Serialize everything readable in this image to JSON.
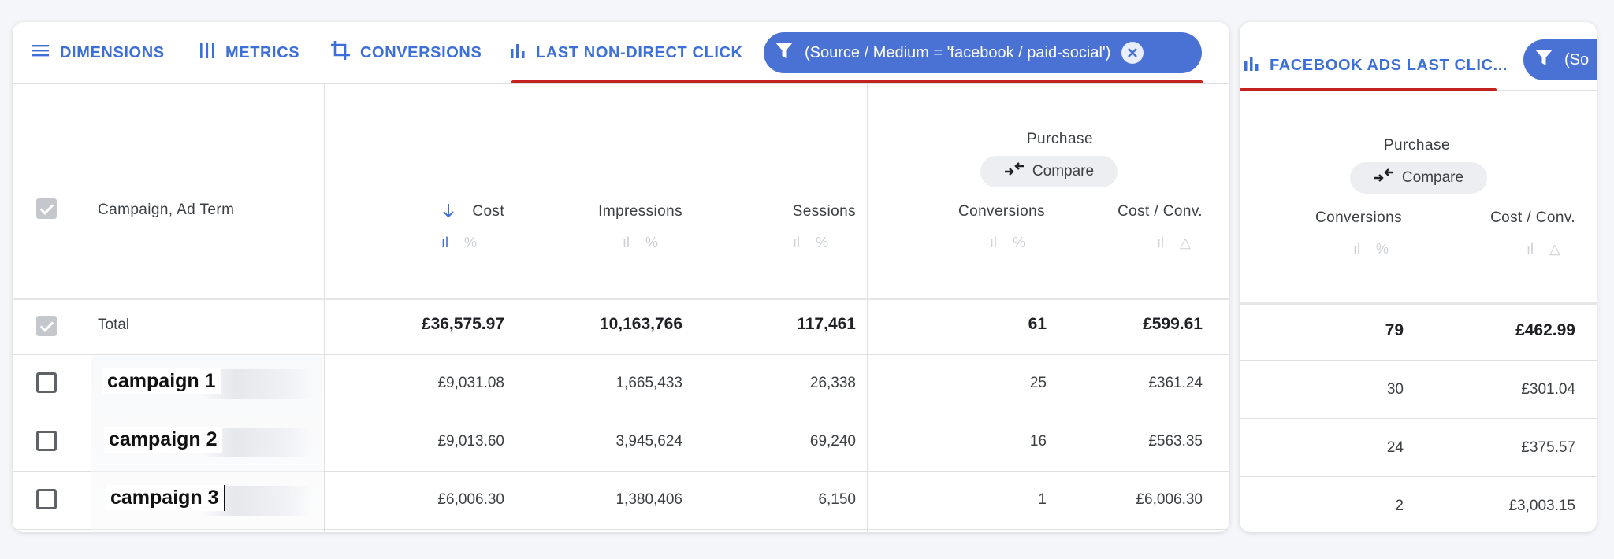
{
  "left_panel": {
    "toolbar": {
      "dimensions": "DIMENSIONS",
      "metrics": "METRICS",
      "conversions": "CONVERSIONS",
      "attribution": "LAST NON-DIRECT CLICK",
      "filter": "(Source / Medium = 'facebook / paid-social')"
    },
    "group_label": "Purchase",
    "compare_label": "Compare",
    "columns": {
      "dimension": "Campaign, Ad Term",
      "cost": "Cost",
      "impressions": "Impressions",
      "sessions": "Sessions",
      "conversions": "Conversions",
      "cost_per_conv": "Cost / Conv."
    },
    "total": {
      "label": "Total",
      "cost": "£36,575.97",
      "impressions": "10,163,766",
      "sessions": "117,461",
      "conversions": "61",
      "cost_per_conv": "£599.61"
    },
    "rows": [
      {
        "campaign": "campaign 1",
        "cost": "£9,031.08",
        "impressions": "1,665,433",
        "sessions": "26,338",
        "conversions": "25",
        "cost_per_conv": "£361.24"
      },
      {
        "campaign": "campaign 2",
        "cost": "£9,013.60",
        "impressions": "3,945,624",
        "sessions": "69,240",
        "conversions": "16",
        "cost_per_conv": "£563.35"
      },
      {
        "campaign": "campaign 3",
        "cost": "£6,006.30",
        "impressions": "1,380,406",
        "sessions": "6,150",
        "conversions": "1",
        "cost_per_conv": "£6,006.30"
      }
    ]
  },
  "right_panel": {
    "toolbar": {
      "attribution": "FACEBOOK ADS LAST CLIC...",
      "filter": "(So"
    },
    "group_label": "Purchase",
    "compare_label": "Compare",
    "columns": {
      "conversions": "Conversions",
      "cost_per_conv": "Cost / Conv."
    },
    "total": {
      "conversions": "79",
      "cost_per_conv": "£462.99"
    },
    "rows": [
      {
        "conversions": "30",
        "cost_per_conv": "£301.04"
      },
      {
        "conversions": "24",
        "cost_per_conv": "£375.57"
      },
      {
        "conversions": "2",
        "cost_per_conv": "£3,003.15"
      }
    ]
  },
  "colors": {
    "accent": "#3c6fd8",
    "chip": "#4a71d4",
    "underline": "#c5221f"
  },
  "icons": [
    "menu-icon",
    "metrics-icon",
    "crop-icon",
    "bar-chart-icon",
    "filter-icon",
    "close-icon",
    "arrow-down-icon",
    "percent-icon",
    "delta-icon",
    "compare-icon",
    "checkbox-icon"
  ]
}
